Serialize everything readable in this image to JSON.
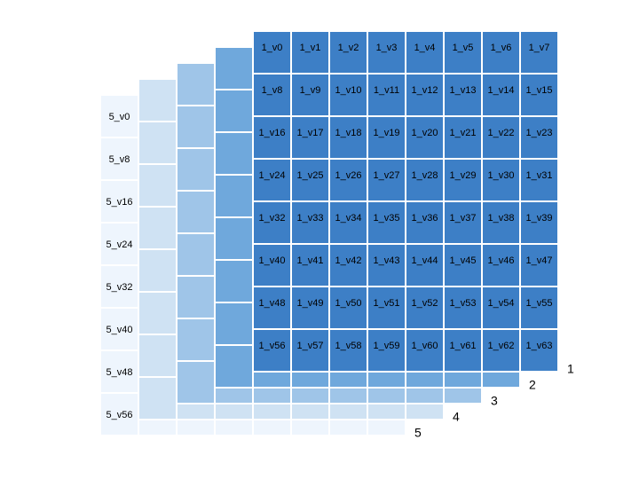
{
  "layers": [
    {
      "name": "1",
      "cells": [
        "1_v0",
        "1_v1",
        "1_v2",
        "1_v3",
        "1_v4",
        "1_v5",
        "1_v6",
        "1_v7",
        "1_v8",
        "1_v9",
        "1_v10",
        "1_v11",
        "1_v12",
        "1_v13",
        "1_v14",
        "1_v15",
        "1_v16",
        "1_v17",
        "1_v18",
        "1_v19",
        "1_v20",
        "1_v21",
        "1_v22",
        "1_v23",
        "1_v24",
        "1_v25",
        "1_v26",
        "1_v27",
        "1_v28",
        "1_v29",
        "1_v30",
        "1_v31",
        "1_v32",
        "1_v33",
        "1_v34",
        "1_v35",
        "1_v36",
        "1_v37",
        "1_v38",
        "1_v39",
        "1_v40",
        "1_v41",
        "1_v42",
        "1_v43",
        "1_v44",
        "1_v45",
        "1_v46",
        "1_v47",
        "1_v48",
        "1_v49",
        "1_v50",
        "1_v51",
        "1_v52",
        "1_v53",
        "1_v54",
        "1_v55",
        "1_v56",
        "1_v57",
        "1_v58",
        "1_v59",
        "1_v60",
        "1_v61",
        "1_v62",
        "1_v63"
      ]
    },
    {
      "name": "2"
    },
    {
      "name": "3"
    },
    {
      "name": "4"
    },
    {
      "name": "5",
      "row_labels": [
        "5_v0",
        "5_v8",
        "5_v16",
        "5_v24",
        "5_v32",
        "5_v40",
        "5_v48",
        "5_v56"
      ]
    }
  ]
}
